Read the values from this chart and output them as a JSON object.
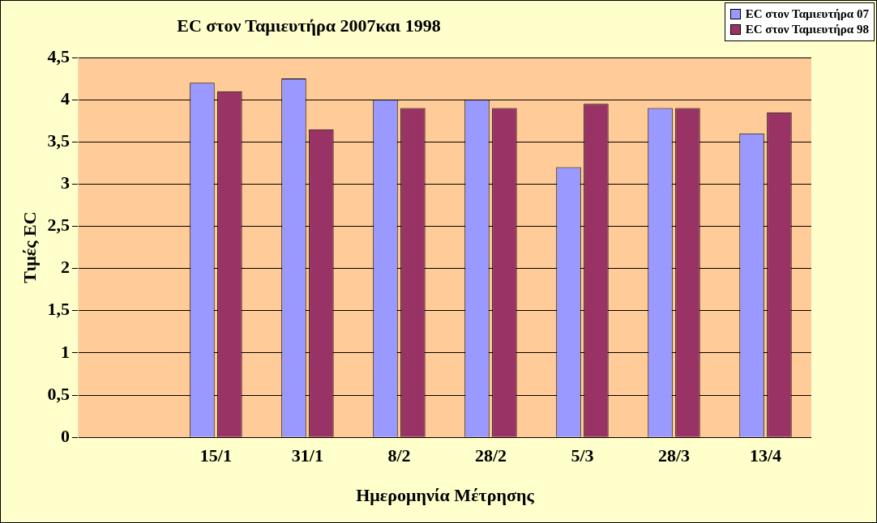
{
  "chart_data": {
    "type": "bar",
    "title": "EC στον Ταμιευτήρα 2007και 1998",
    "xlabel": "Ημερομηνία Μέτρησης",
    "ylabel": "Τιμές EC",
    "categories": [
      null,
      "15/1",
      "31/1",
      "8/2",
      "28/2",
      "5/3",
      "28/3",
      "13/4"
    ],
    "series": [
      {
        "name": "EC στον Ταμιευτήρα 07",
        "color": "#9999ff",
        "values": [
          null,
          4.2,
          4.25,
          4.0,
          4.0,
          3.2,
          3.9,
          3.6
        ]
      },
      {
        "name": "EC στον Ταμιευτήρα 98",
        "color": "#993366",
        "values": [
          null,
          4.1,
          3.65,
          3.9,
          3.9,
          3.95,
          3.9,
          3.85
        ]
      }
    ],
    "ylim": [
      0,
      4.5
    ],
    "yticks": [
      0,
      {
        "value": 0.5,
        "label": "0,5"
      },
      1,
      {
        "value": 1.5,
        "label": "1,5"
      },
      2,
      {
        "value": 2.5,
        "label": "2,5"
      },
      3,
      {
        "value": 3.5,
        "label": "3,5"
      },
      4,
      {
        "value": 4.5,
        "label": "4,5"
      }
    ],
    "grid": "y",
    "legend": "top right"
  }
}
